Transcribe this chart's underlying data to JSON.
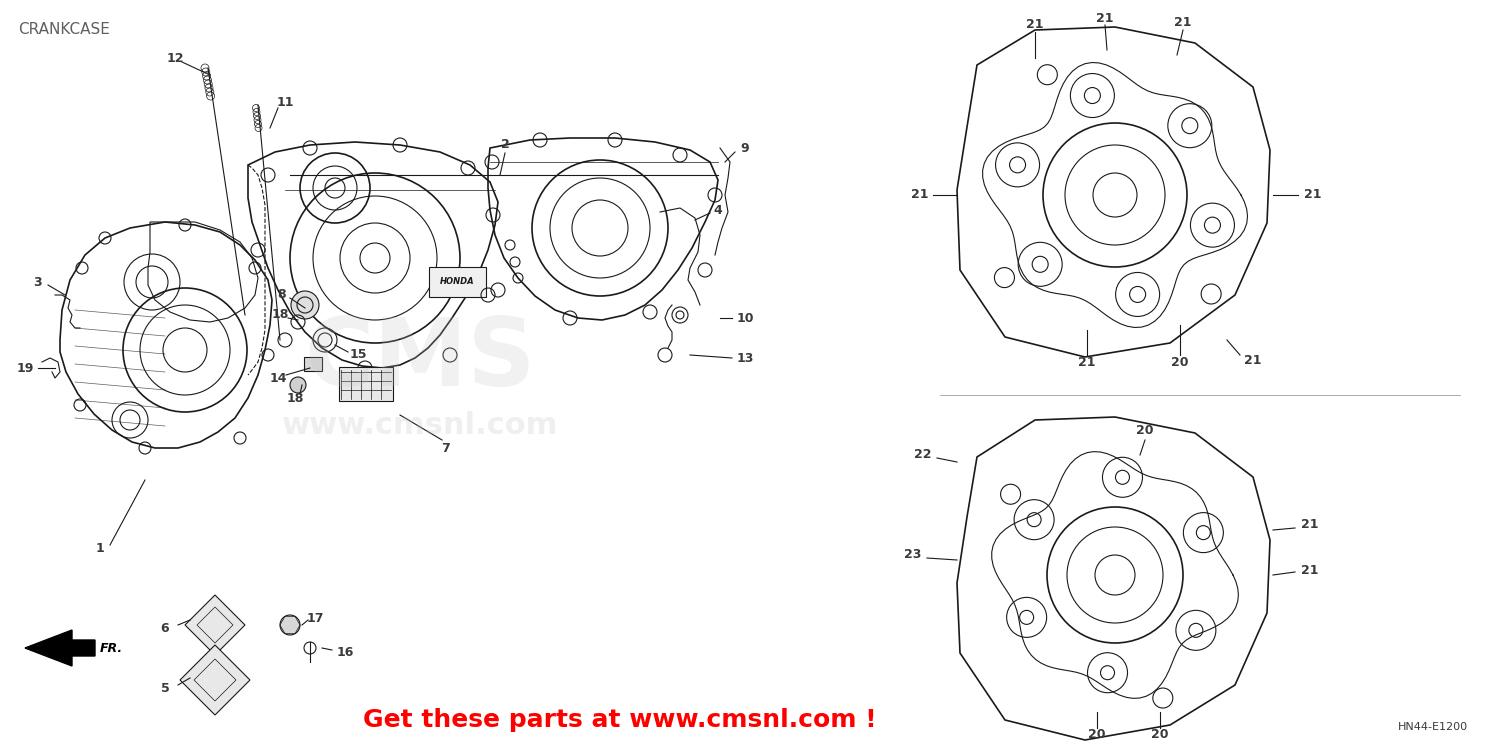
{
  "title": "CRANKCASE",
  "diagram_label": "HN44-E1200",
  "ad_text": "Get these parts at www.cmsnl.com !",
  "ad_color": "#FF0000",
  "bg_color": "#FFFFFF",
  "cms_wm_color": "#C0C0C0",
  "text_color": "#3A3A3A",
  "line_color": "#1A1A1A",
  "figsize": [
    15.0,
    7.54
  ],
  "dpi": 100,
  "title_fontsize": 11,
  "label_fontsize": 9,
  "ad_fontsize": 18
}
